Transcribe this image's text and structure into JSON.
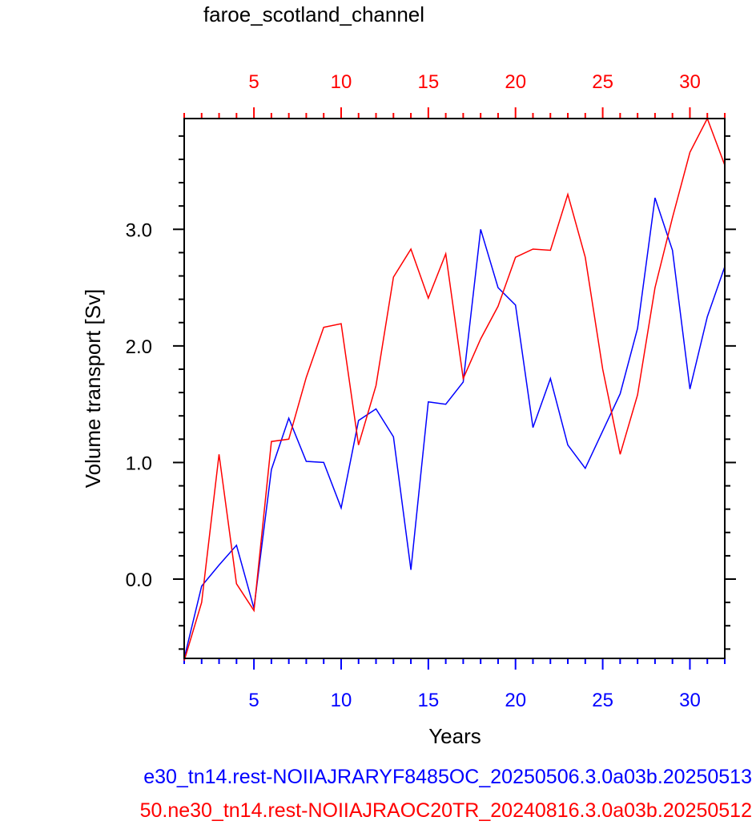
{
  "chart_data": {
    "type": "line",
    "title": "faroe_scotland_channel",
    "xlabel": "Years",
    "ylabel": "Volume transport [Sv]",
    "xlim": [
      1,
      32
    ],
    "ylim": [
      -0.68,
      3.95
    ],
    "x_ticks_bottom": [
      5,
      10,
      15,
      20,
      25,
      30
    ],
    "x_ticks_top": [
      5,
      10,
      15,
      20,
      25,
      30
    ],
    "y_ticks": [
      "0.0",
      "1.0",
      "2.0",
      "3.0"
    ],
    "y_tick_values": [
      0.0,
      1.0,
      2.0,
      3.0
    ],
    "bottom_axis_color": "#0000ff",
    "top_axis_color": "#ff0000",
    "grid": false,
    "series": [
      {
        "name": "e30_tn14.rest-NOIIAJRARYF8485OC_20250506.3.0a03b.20250513",
        "color": "#0000ff",
        "x": [
          1,
          2,
          3,
          4,
          5,
          6,
          7,
          8,
          9,
          10,
          11,
          12,
          13,
          14,
          15,
          16,
          17,
          18,
          19,
          20,
          21,
          22,
          23,
          24,
          25,
          26,
          27,
          28,
          29,
          30,
          31,
          32
        ],
        "values": [
          -0.68,
          -0.06,
          0.12,
          0.29,
          -0.25,
          0.94,
          1.38,
          1.01,
          1.0,
          0.61,
          1.36,
          1.46,
          1.22,
          0.08,
          1.52,
          1.5,
          1.69,
          3.0,
          2.5,
          2.35,
          1.3,
          1.72,
          1.15,
          0.95,
          1.27,
          1.59,
          2.15,
          3.27,
          2.82,
          1.63,
          2.25,
          2.68
        ]
      },
      {
        "name": "50.ne30_tn14.rest-NOIIAJRAOC20TR_20240816.3.0a03b.20250512",
        "color": "#ff0000",
        "x": [
          1,
          2,
          3,
          4,
          5,
          6,
          7,
          8,
          9,
          10,
          11,
          12,
          13,
          14,
          15,
          16,
          17,
          18,
          19,
          20,
          21,
          22,
          23,
          24,
          25,
          26,
          27,
          28,
          29,
          30,
          31,
          32
        ],
        "values": [
          -0.7,
          -0.2,
          1.07,
          -0.04,
          -0.27,
          1.18,
          1.2,
          1.73,
          2.16,
          2.19,
          1.15,
          1.66,
          2.59,
          2.83,
          2.41,
          2.79,
          1.72,
          2.06,
          2.34,
          2.76,
          2.83,
          2.82,
          3.3,
          2.76,
          1.8,
          1.07,
          1.58,
          2.5,
          3.1,
          3.66,
          3.95,
          3.55
        ]
      }
    ]
  }
}
